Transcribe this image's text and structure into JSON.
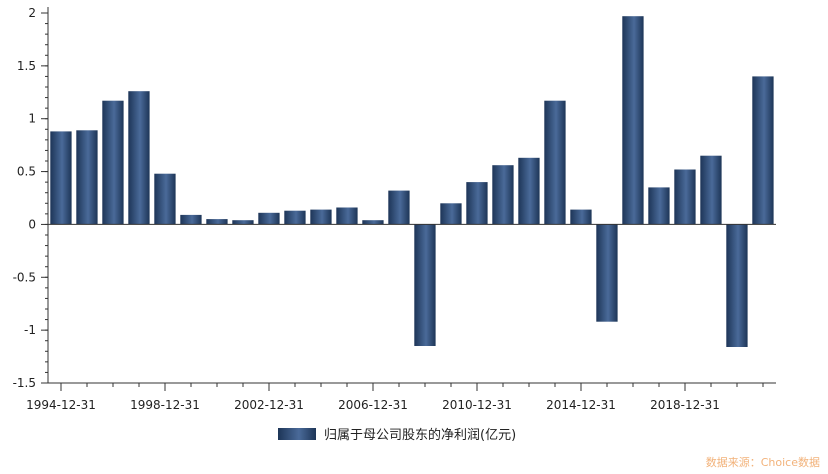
{
  "chart_data": {
    "type": "bar",
    "categories": [
      "1994-12-31",
      "1995-12-31",
      "1996-12-31",
      "1997-12-31",
      "1998-12-31",
      "1999-12-31",
      "2000-12-31",
      "2001-12-31",
      "2002-12-31",
      "2003-12-31",
      "2004-12-31",
      "2005-12-31",
      "2006-12-31",
      "2007-12-31",
      "2008-12-31",
      "2009-12-31",
      "2010-12-31",
      "2011-12-31",
      "2012-12-31",
      "2013-12-31",
      "2014-12-31",
      "2015-12-31",
      "2016-12-31",
      "2017-12-31",
      "2018-12-31",
      "2019-12-31",
      "2020-12-31",
      "2021-12-31"
    ],
    "x_tick_labels": [
      "1994-12-31",
      "1998-12-31",
      "2002-12-31",
      "2006-12-31",
      "2010-12-31",
      "2014-12-31",
      "2018-12-31"
    ],
    "y_ticks": [
      2,
      1.5,
      1,
      0.5,
      0,
      -0.5,
      -1,
      -1.5
    ],
    "ylim": [
      -1.5,
      2
    ],
    "series": [
      {
        "name": "归属于母公司股东的净利润(亿元)",
        "values": [
          0.88,
          0.89,
          1.17,
          1.26,
          0.48,
          0.09,
          0.05,
          0.04,
          0.11,
          0.13,
          0.14,
          0.16,
          0.04,
          0.32,
          -1.15,
          0.2,
          0.4,
          0.56,
          0.63,
          1.17,
          0.14,
          -0.92,
          1.97,
          0.35,
          0.52,
          0.65,
          -1.16,
          1.4
        ]
      }
    ],
    "legend_position": "bottom-center",
    "grid": false
  },
  "legend_label": "归属于母公司股东的净利润(亿元)",
  "watermark": "数据来源：Choice数据",
  "colors": {
    "bar_dark": "#1d3557",
    "bar_light": "#4a6a99",
    "watermark": "#f2b27a"
  }
}
